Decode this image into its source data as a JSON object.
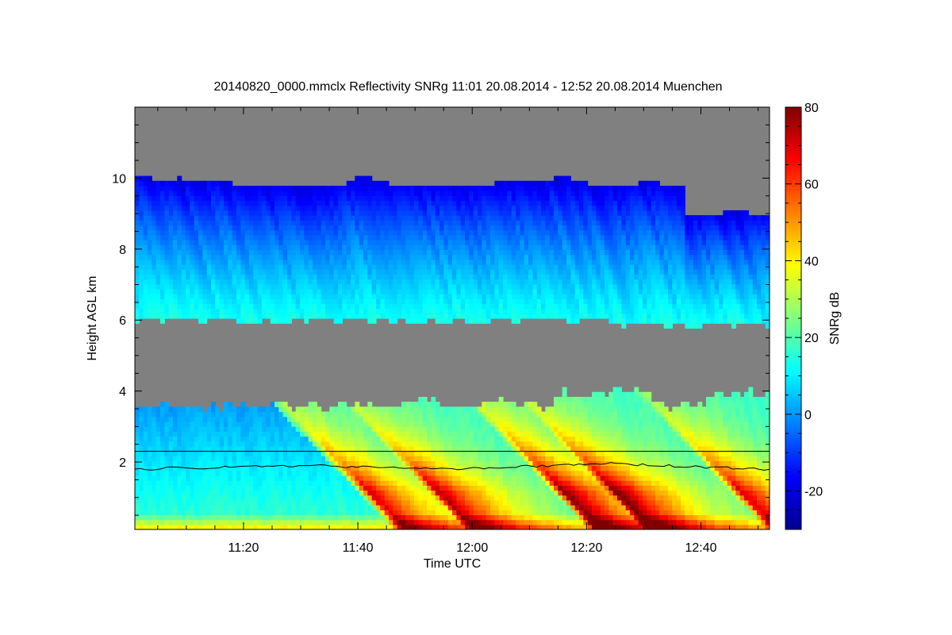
{
  "chart_data": {
    "type": "heatmap",
    "title": "20140820_0000.mmclx Reflectivity SNRg   11:01 20.08.2014 - 12:52 20.08.2014 Muenchen",
    "xlabel": "Time UTC",
    "ylabel": "Height AGL km",
    "colorbar_label": "SNRg dB",
    "x_range": [
      "11:01",
      "12:52"
    ],
    "x_ticks": [
      "11:20",
      "11:40",
      "12:00",
      "12:20",
      "12:40"
    ],
    "ylim": [
      0.1,
      12.0
    ],
    "y_ticks": [
      "2",
      "4",
      "6",
      "8",
      "10"
    ],
    "colorbar_range": [
      -30,
      80
    ],
    "colorbar_ticks": [
      "-20",
      "0",
      "20",
      "40",
      "60",
      "80"
    ],
    "no_signal_color": "#808080",
    "cloud_layers": [
      {
        "name": "upper cloud",
        "base_km": 6.0,
        "top_km": 10.0,
        "snr_db": "about -10 to 15"
      },
      {
        "name": "lower layer",
        "base_km": 0.1,
        "top_km": 3.9,
        "snr_db": "about 0 to 75"
      }
    ],
    "reference_lines": [
      {
        "type": "horizontal",
        "height_km": 2.3
      },
      {
        "type": "line",
        "height_km_approx": [
          1.8,
          1.9,
          1.8,
          1.95,
          1.8
        ]
      }
    ],
    "colormap": [
      "#00008f",
      "#0000ff",
      "#0080ff",
      "#00ffff",
      "#80ff80",
      "#ffff00",
      "#ff8000",
      "#ff0000",
      "#800000"
    ]
  }
}
